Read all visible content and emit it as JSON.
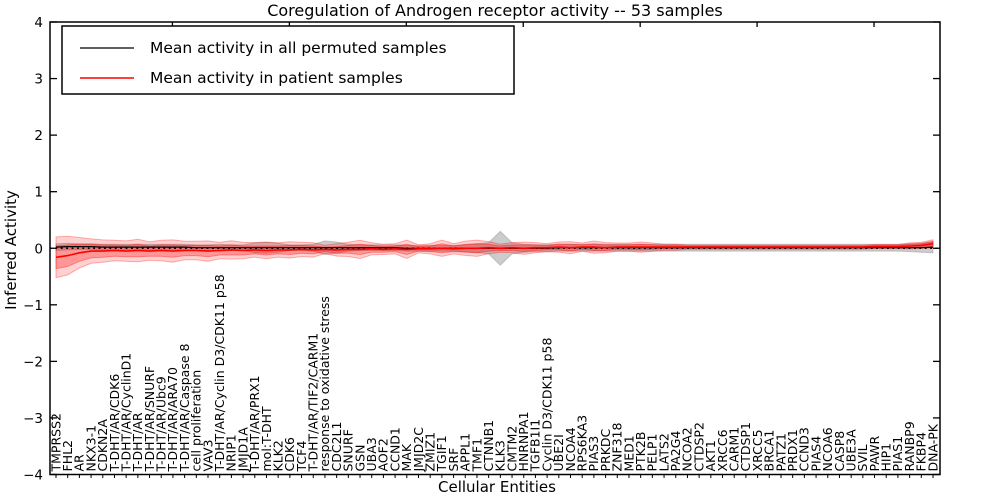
{
  "figure": {
    "title": "Coregulation of Androgen receptor activity -- 53 samples",
    "xlabel": "Cellular Entities",
    "ylabel": "Inferred Activity"
  },
  "legend": {
    "position": "upper left",
    "entries": [
      {
        "label": "Mean activity in all permuted samples",
        "color": "#000000"
      },
      {
        "label": "Mean activity in patient samples",
        "color": "#ff0000"
      }
    ]
  },
  "axes": {
    "y_tick_labels": [
      "4",
      "3",
      "2",
      "1",
      "0",
      "−1",
      "−2",
      "−3",
      "−4"
    ],
    "y_tick_values": [
      4,
      3,
      2,
      1,
      0,
      -1,
      -2,
      -3,
      -4
    ],
    "ylim": [
      -4,
      4
    ],
    "grid": false
  },
  "chart_data": {
    "type": "line",
    "title": "Coregulation of Androgen receptor activity -- 53 samples",
    "xlabel": "Cellular Entities",
    "ylabel": "Inferred Activity",
    "ylim": [
      -4,
      4
    ],
    "legend_position": "upper left",
    "zero_line_style": "dotted",
    "categories": [
      "TMPRSS2",
      "FHL2",
      "AR",
      "NKX3-1",
      "CDKN2A",
      "T-DHT/AR/CDK6",
      "T-DHT/AR/CyclinD1",
      "T-DHT/AR",
      "T-DHT/AR/SNURF",
      "T-DHT/AR/Ubc9",
      "T-DHT/AR/ARA70",
      "T-DHT/AR/Caspase 8",
      "cell proliferation",
      "VAV3",
      "T-DHT/AR/Cyclin D3/CDK11 p58",
      "NRIP1",
      "JMJD1A",
      "T-DHT/AR/PRX1",
      "mol:T-DHT",
      "KLK2",
      "CDK6",
      "TCF4",
      "T-DHT/AR/TIF2/CARM1",
      "response to oxidative stress",
      "CDC2L1",
      "SNURF",
      "GSN",
      "UBA3",
      "AOF2",
      "CCND1",
      "MAK",
      "JMJD2C",
      "ZMIZ1",
      "TGIF1",
      "SRF",
      "APPL1",
      "TMF1",
      "CTNNB1",
      "KLK3",
      "CMTM2",
      "HNRNPA1",
      "TGFB1I1",
      "Cyclin D3/CDK11 p58",
      "UBE2I",
      "NCOA4",
      "RPS6KA3",
      "PIAS3",
      "PRKDC",
      "ZNF318",
      "MED1",
      "PTK2B",
      "PELP1",
      "LATS2",
      "PA2G4",
      "NCOA2",
      "CTDSP2",
      "AKT1",
      "XRCC6",
      "CARM1",
      "CTDSP1",
      "XRCC5",
      "BRCA1",
      "PATZ1",
      "PRDX1",
      "CCND3",
      "PIAS4",
      "NCOA6",
      "CASP8",
      "UBE3A",
      "SVIL",
      "PAWR",
      "HIP1",
      "PIAS1",
      "RANBP9",
      "FKBP4",
      "DNA-PK"
    ],
    "series": [
      {
        "name": "Mean activity in all permuted samples",
        "color": "#000000",
        "band_color": "#787878",
        "values": [
          0.02,
          0.03,
          0.03,
          0.03,
          0.02,
          0.02,
          0.02,
          0.02,
          0.02,
          0.02,
          0.02,
          0.02,
          0.01,
          0.01,
          0.01,
          0.01,
          0.01,
          0.01,
          0.01,
          0.01,
          0.01,
          0.01,
          0.01,
          0.01,
          0.01,
          0.01,
          0.01,
          0.01,
          0.01,
          0.01,
          0.0,
          0.0,
          0.0,
          0.0,
          0.0,
          0.0,
          0.0,
          0.0,
          0.0,
          0.0,
          0.0,
          0.0,
          0.0,
          0.01,
          0.01,
          0.01,
          0.01,
          0.01,
          0.01,
          0.01,
          0.01,
          0.01,
          0.01,
          0.01,
          0.01,
          0.01,
          0.01,
          0.01,
          0.01,
          0.01,
          0.01,
          0.01,
          0.01,
          0.01,
          0.01,
          0.01,
          0.01,
          0.01,
          0.01,
          0.01,
          0.01,
          0.01,
          0.01,
          0.01,
          0.01,
          0.02
        ],
        "band_std": [
          0.06,
          0.06,
          0.05,
          0.05,
          0.05,
          0.05,
          0.05,
          0.05,
          0.05,
          0.05,
          0.05,
          0.05,
          0.05,
          0.05,
          0.06,
          0.05,
          0.05,
          0.09,
          0.1,
          0.08,
          0.05,
          0.05,
          0.06,
          0.12,
          0.1,
          0.06,
          0.05,
          0.05,
          0.05,
          0.05,
          0.05,
          0.05,
          0.05,
          0.05,
          0.05,
          0.06,
          0.08,
          0.1,
          0.3,
          0.1,
          0.07,
          0.06,
          0.06,
          0.06,
          0.06,
          0.06,
          0.06,
          0.06,
          0.06,
          0.06,
          0.06,
          0.06,
          0.06,
          0.06,
          0.06,
          0.06,
          0.06,
          0.06,
          0.06,
          0.06,
          0.06,
          0.06,
          0.06,
          0.06,
          0.06,
          0.06,
          0.06,
          0.06,
          0.06,
          0.06,
          0.06,
          0.06,
          0.06,
          0.07,
          0.08,
          0.1
        ]
      },
      {
        "name": "Mean activity in patient samples",
        "color": "#ff0000",
        "band_color": "#ff0000",
        "values": [
          -0.16,
          -0.13,
          -0.08,
          -0.05,
          -0.05,
          -0.04,
          -0.05,
          -0.04,
          -0.05,
          -0.04,
          -0.05,
          -0.04,
          -0.04,
          -0.05,
          -0.04,
          -0.03,
          -0.04,
          -0.03,
          -0.04,
          -0.03,
          -0.03,
          -0.02,
          -0.03,
          -0.02,
          -0.03,
          -0.02,
          -0.02,
          -0.01,
          -0.02,
          -0.01,
          -0.02,
          -0.01,
          -0.01,
          0.0,
          -0.01,
          0.0,
          0.0,
          0.01,
          0.0,
          0.01,
          0.0,
          0.01,
          0.01,
          0.02,
          0.01,
          0.02,
          0.02,
          0.01,
          0.02,
          0.02,
          0.02,
          0.02,
          0.02,
          0.02,
          0.02,
          0.02,
          0.02,
          0.02,
          0.02,
          0.02,
          0.02,
          0.02,
          0.02,
          0.02,
          0.02,
          0.02,
          0.02,
          0.02,
          0.02,
          0.02,
          0.03,
          0.03,
          0.03,
          0.04,
          0.05,
          0.08
        ],
        "band_std": [
          0.2,
          0.19,
          0.15,
          0.12,
          0.11,
          0.1,
          0.1,
          0.11,
          0.09,
          0.1,
          0.11,
          0.09,
          0.09,
          0.1,
          0.08,
          0.09,
          0.08,
          0.07,
          0.08,
          0.07,
          0.08,
          0.07,
          0.07,
          0.04,
          0.06,
          0.07,
          0.09,
          0.06,
          0.05,
          0.05,
          0.09,
          0.04,
          0.05,
          0.08,
          0.05,
          0.07,
          0.08,
          0.06,
          0.04,
          0.05,
          0.06,
          0.05,
          0.04,
          0.05,
          0.06,
          0.04,
          0.06,
          0.05,
          0.04,
          0.04,
          0.05,
          0.04,
          0.03,
          0.03,
          0.02,
          0.02,
          0.02,
          0.02,
          0.02,
          0.02,
          0.02,
          0.02,
          0.02,
          0.02,
          0.02,
          0.02,
          0.02,
          0.02,
          0.02,
          0.02,
          0.02,
          0.02,
          0.02,
          0.03,
          0.03,
          0.04
        ]
      }
    ]
  }
}
